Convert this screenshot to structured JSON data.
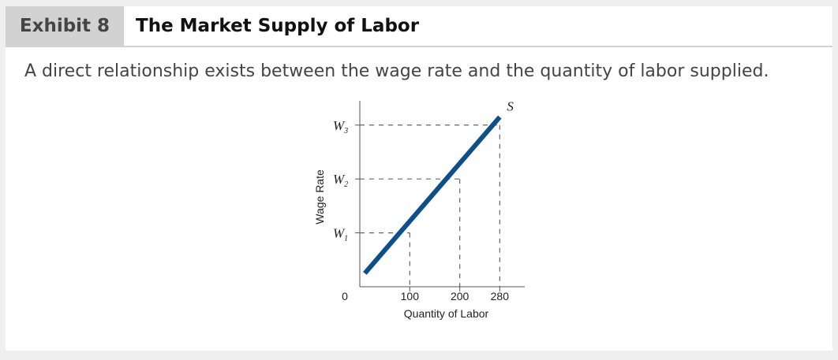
{
  "header": {
    "exhibit_label": "Exhibit 8",
    "title": "The Market Supply of Labor"
  },
  "subtitle": "A direct relationship exists between the wage rate and the quantity of labor supplied.",
  "colors": {
    "curve": "#0c4f8a",
    "exhibit_bg": "#d2d2d2",
    "page_bg": "#efefef"
  },
  "chart_data": {
    "type": "line",
    "xlabel": "Quantity of Labor",
    "ylabel": "Wage Rate",
    "origin_label": "0",
    "series": [
      {
        "name": "S",
        "x": [
          10,
          280
        ],
        "y": [
          0.25,
          3.15
        ]
      }
    ],
    "x_ticks": [
      100,
      200,
      280
    ],
    "y_ticks": [
      {
        "base": "W",
        "sub": "1",
        "value": 1
      },
      {
        "base": "W",
        "sub": "2",
        "value": 2
      },
      {
        "base": "W",
        "sub": "3",
        "value": 3
      }
    ],
    "reference_points": [
      {
        "x": 100,
        "y": 1
      },
      {
        "x": 200,
        "y": 2
      },
      {
        "x": 280,
        "y": 3
      }
    ],
    "xlim": [
      0,
      330
    ],
    "ylim": [
      0,
      3.45
    ],
    "grid": false,
    "legend": "none"
  }
}
